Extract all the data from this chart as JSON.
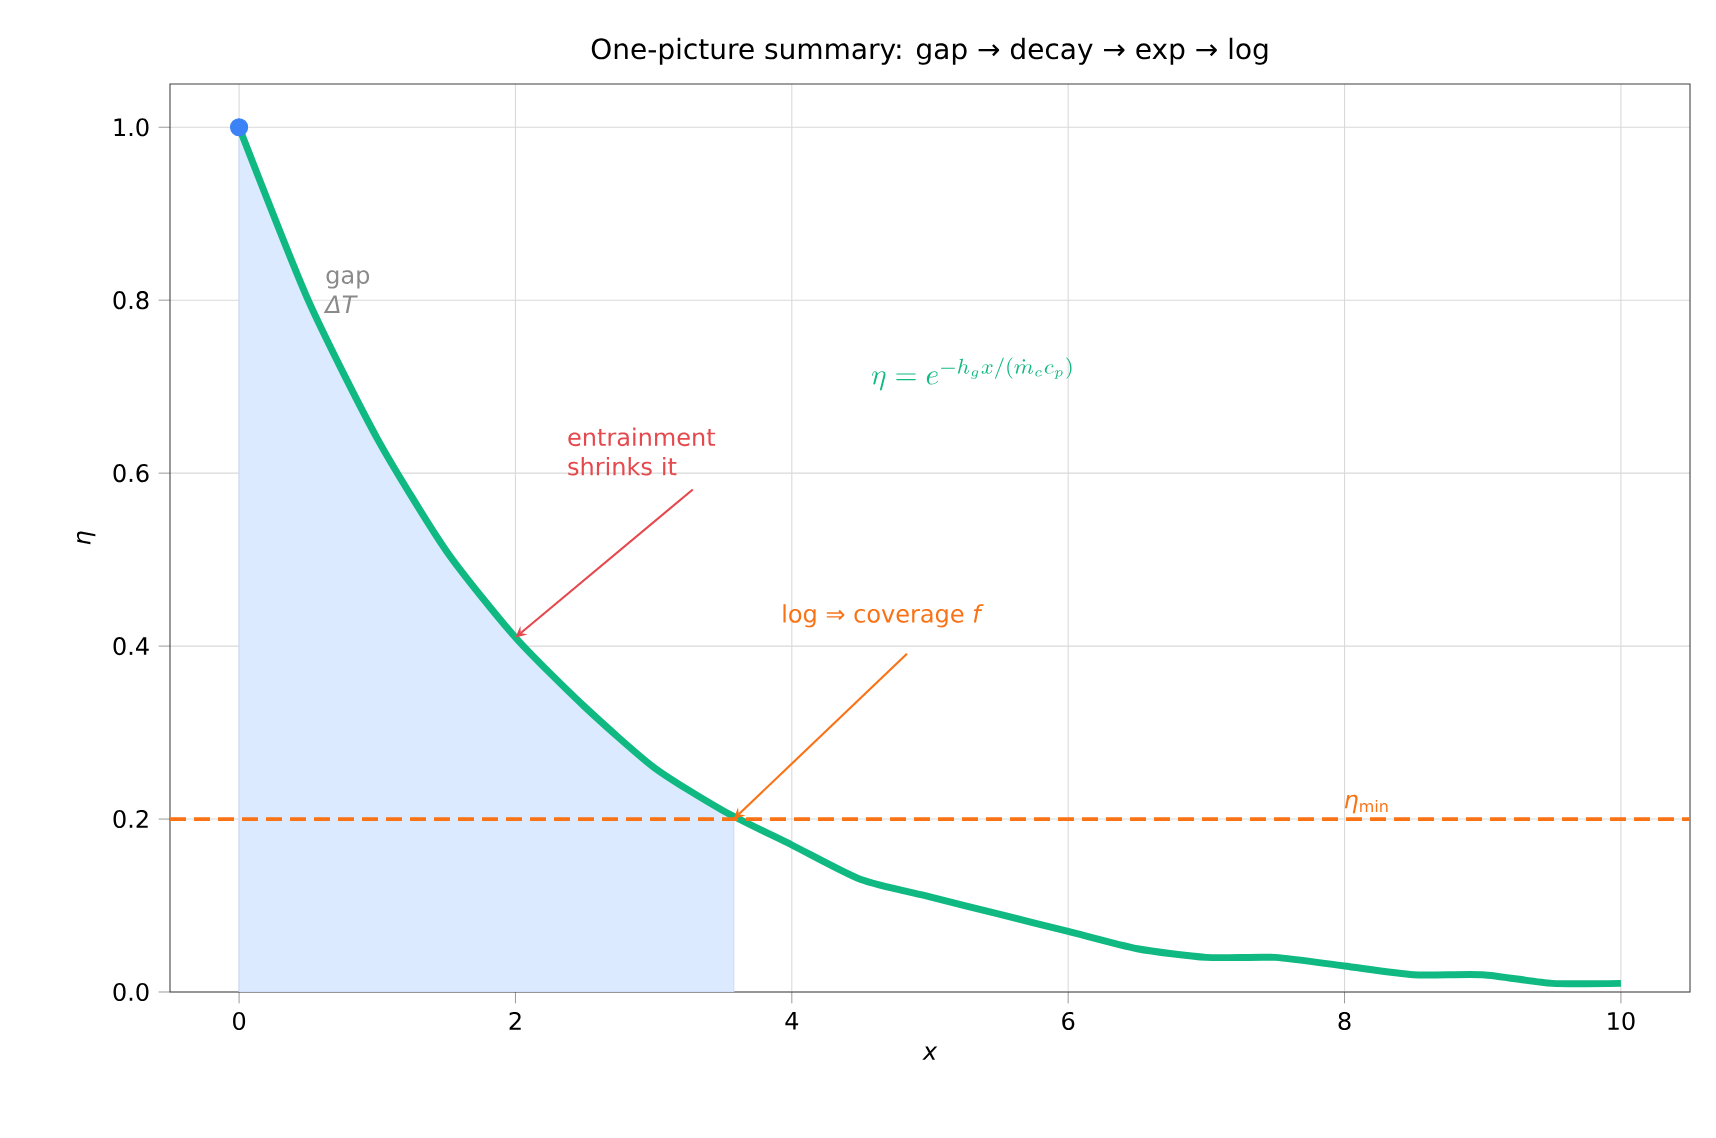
{
  "chart_data": {
    "type": "line",
    "title": "One-picture summary: gap → decay → exp → log",
    "xlabel": "x",
    "ylabel": "η",
    "xlim": [
      -0.5,
      10.5
    ],
    "ylim": [
      0,
      1.05
    ],
    "xticks": [
      0,
      2,
      4,
      6,
      8,
      10
    ],
    "yticks": [
      {
        "value": 0,
        "label": "0.0"
      },
      {
        "value": 0.2,
        "label": "0.2"
      },
      {
        "value": 0.4,
        "label": "0.4"
      },
      {
        "value": 0.6,
        "label": "0.6"
      },
      {
        "value": 0.8,
        "label": "0.8"
      },
      {
        "value": 1,
        "label": "1.0"
      }
    ],
    "grid": true,
    "series": [
      {
        "type": "area",
        "color": "#dbeafe",
        "x": [
          0,
          0.5,
          1,
          1.5,
          2,
          2.5,
          3,
          3.5,
          3.58
        ],
        "values": [
          1,
          0.8,
          0.64,
          0.51,
          0.41,
          0.33,
          0.26,
          0.21,
          0.2
        ]
      },
      {
        "color": "#10b981",
        "x": [
          0,
          0.5,
          1,
          1.5,
          2,
          2.5,
          3,
          3.5,
          4,
          4.5,
          5,
          5.5,
          6,
          6.5,
          7,
          7.5,
          8,
          8.5,
          9,
          9.5,
          10
        ],
        "values": [
          1,
          0.8,
          0.64,
          0.51,
          0.41,
          0.33,
          0.26,
          0.21,
          0.17,
          0.13,
          0.11,
          0.09,
          0.07,
          0.05,
          0.04,
          0.04,
          0.03,
          0.02,
          0.02,
          0.01,
          0.01
        ],
        "line_style": "solid"
      },
      {
        "type": "scatter",
        "color": "#3b82f6",
        "x": [
          0
        ],
        "values": [
          1
        ],
        "marker": "circle"
      }
    ],
    "ref_lines": [
      {
        "axis": "y",
        "value": 0.2,
        "label": "*η*$_{min}$",
        "color": "#f97316",
        "line_style": "dashed"
      }
    ],
    "annotations": [
      "gap *ΔT*",
      "\\eta = e^{-h_g x/(\\dot{m}_c c_p)}",
      {
        "text": "entrainment shrinks it",
        "x": 2,
        "y": 0.41
      },
      {
        "text": "log ⇒ coverage *f*",
        "x": 3.58,
        "y": 0.2
      }
    ]
  }
}
